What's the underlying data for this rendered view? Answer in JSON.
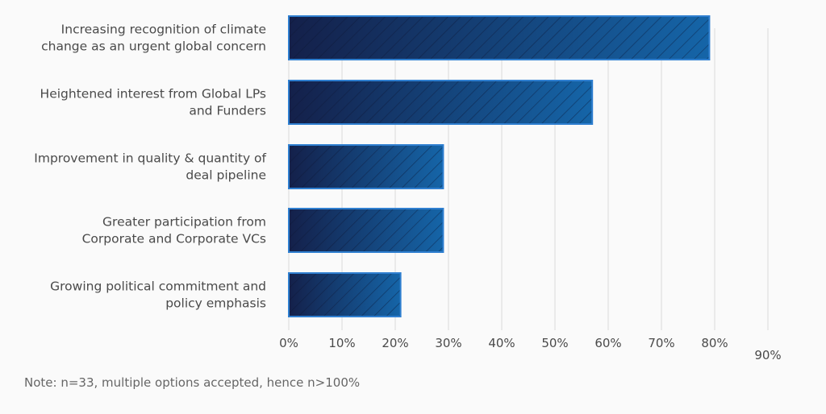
{
  "chart_data": {
    "type": "bar",
    "orientation": "horizontal",
    "categories": [
      [
        "Increasing recognition of climate",
        "change as an urgent global concern"
      ],
      [
        "Heightened interest from Global LPs",
        "and Funders"
      ],
      [
        "Improvement in quality & quantity of",
        "deal pipeline"
      ],
      [
        "Greater participation from",
        "Corporate and Corporate VCs"
      ],
      [
        "Growing political commitment and",
        "policy emphasis"
      ]
    ],
    "values": [
      79,
      57,
      29,
      29,
      21
    ],
    "unit": "%",
    "xlim": [
      0,
      90
    ],
    "xticks": [
      "0%",
      "10%",
      "20%",
      "30%",
      "40%",
      "50%",
      "60%",
      "70%",
      "80%",
      "90%"
    ],
    "grid": true,
    "legend": "none",
    "colors": {
      "bar_dark": "#14204a",
      "bar_light": "#1565a8",
      "bar_border": "#2f7fd0",
      "hatch": "#0a1535",
      "grid": "#d9d9d9",
      "text": "#4a4a4a"
    }
  },
  "note": "Note: n=33, multiple options accepted, hence n>100%"
}
